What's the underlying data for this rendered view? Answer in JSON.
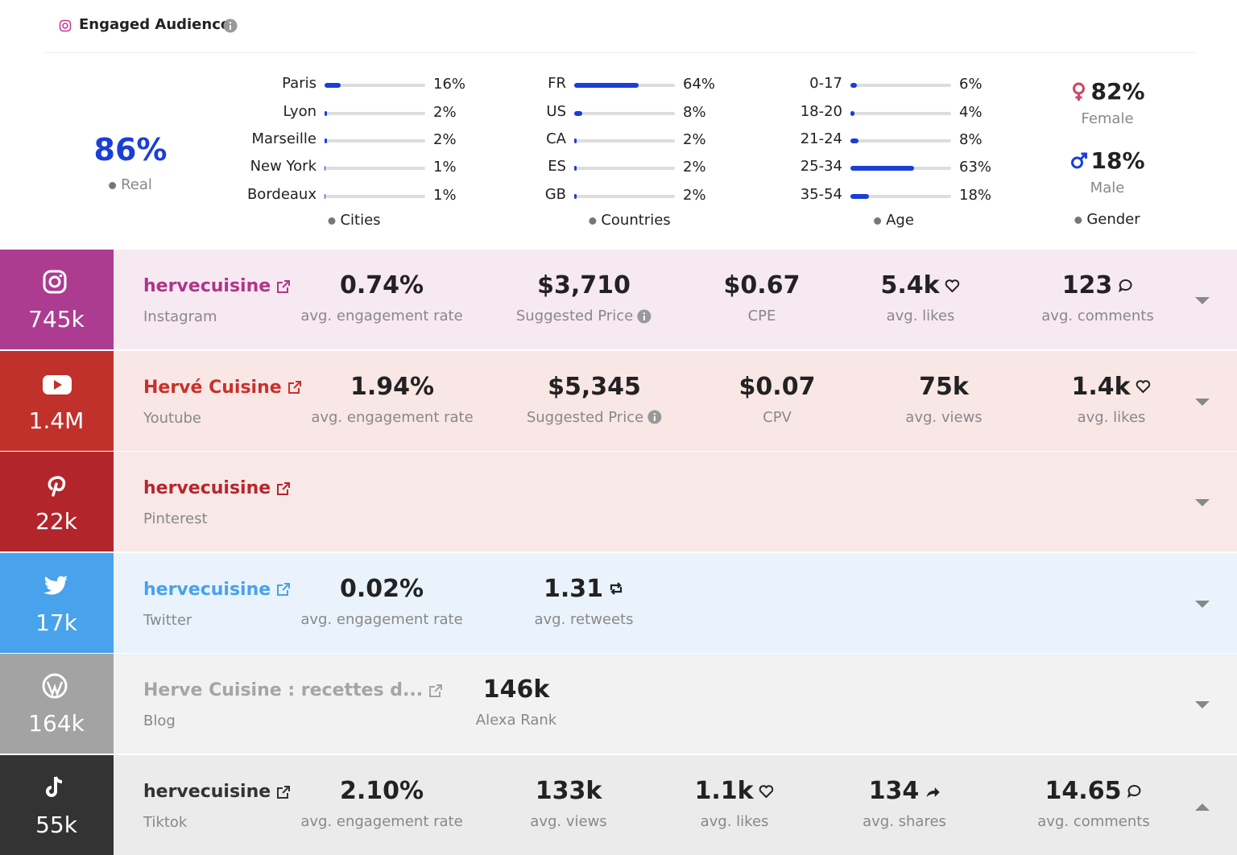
{
  "header": {
    "title": "Engaged Audience"
  },
  "real": {
    "value": "86%",
    "label": "Real"
  },
  "breakdowns": [
    {
      "title": "Cities",
      "rows": [
        {
          "label": "Paris",
          "share": {
            "value": 16,
            "label": "16%"
          }
        },
        {
          "label": "Lyon",
          "share": {
            "value": 2,
            "label": "2%"
          }
        },
        {
          "label": "Marseille",
          "share": {
            "value": 2,
            "label": "2%"
          }
        },
        {
          "label": "New York",
          "share": {
            "value": 1,
            "label": "1%"
          }
        },
        {
          "label": "Bordeaux",
          "share": {
            "value": 1,
            "label": "1%"
          }
        }
      ]
    },
    {
      "title": "Countries",
      "rows": [
        {
          "label": "FR",
          "share": {
            "value": 64,
            "label": "64%"
          }
        },
        {
          "label": "US",
          "share": {
            "value": 8,
            "label": "8%"
          }
        },
        {
          "label": "CA",
          "share": {
            "value": 2,
            "label": "2%"
          }
        },
        {
          "label": "ES",
          "share": {
            "value": 2,
            "label": "2%"
          }
        },
        {
          "label": "GB",
          "share": {
            "value": 2,
            "label": "2%"
          }
        }
      ]
    },
    {
      "title": "Age",
      "rows": [
        {
          "label": "0-17",
          "share": {
            "value": 6,
            "label": "6%"
          }
        },
        {
          "label": "18-20",
          "share": {
            "value": 4,
            "label": "4%"
          }
        },
        {
          "label": "21-24",
          "share": {
            "value": 8,
            "label": "8%"
          }
        },
        {
          "label": "25-34",
          "share": {
            "value": 63,
            "label": "63%"
          }
        },
        {
          "label": "35-54",
          "share": {
            "value": 18,
            "label": "18%"
          }
        }
      ]
    }
  ],
  "gender": {
    "title": "Gender",
    "female": {
      "value": "82%",
      "label": "Female"
    },
    "male": {
      "value": "18%",
      "label": "Male"
    }
  },
  "platforms": [
    {
      "followers": "745k",
      "name": "hervecuisine",
      "platform": "Instagram",
      "metrics": [
        {
          "value": "0.74%",
          "label": "avg. engagement rate"
        },
        {
          "value": "$3,710",
          "label": "Suggested Price"
        },
        {
          "value": "$0.67",
          "label": "CPE"
        },
        {
          "value": "5.4k",
          "label": "avg. likes"
        },
        {
          "value": "123",
          "label": "avg. comments"
        }
      ]
    },
    {
      "followers": "1.4M",
      "name": "Hervé Cuisine",
      "platform": "Youtube",
      "metrics": [
        {
          "value": "1.94%",
          "label": "avg. engagement rate"
        },
        {
          "value": "$5,345",
          "label": "Suggested Price"
        },
        {
          "value": "$0.07",
          "label": "CPV"
        },
        {
          "value": "75k",
          "label": "avg. views"
        },
        {
          "value": "1.4k",
          "label": "avg. likes"
        }
      ]
    },
    {
      "followers": "22k",
      "name": "hervecuisine",
      "platform": "Pinterest",
      "metrics": []
    },
    {
      "followers": "17k",
      "name": "hervecuisine",
      "platform": "Twitter",
      "metrics": [
        {
          "value": "0.02%",
          "label": "avg. engagement rate"
        },
        {
          "value": "1.31",
          "label": "avg. retweets"
        }
      ]
    },
    {
      "followers": "164k",
      "name": "Herve Cuisine : recettes d...",
      "platform": "Blog",
      "metrics": [
        {
          "value": "146k",
          "label": "Alexa Rank"
        }
      ]
    },
    {
      "followers": "55k",
      "name": "hervecuisine",
      "platform": "Tiktok",
      "metrics": [
        {
          "value": "2.10%",
          "label": "avg. engagement rate"
        },
        {
          "value": "133k",
          "label": "avg. views"
        },
        {
          "value": "1.1k",
          "label": "avg. likes"
        },
        {
          "value": "134",
          "label": "avg. shares"
        },
        {
          "value": "14.65",
          "label": "avg. comments"
        }
      ]
    }
  ]
}
